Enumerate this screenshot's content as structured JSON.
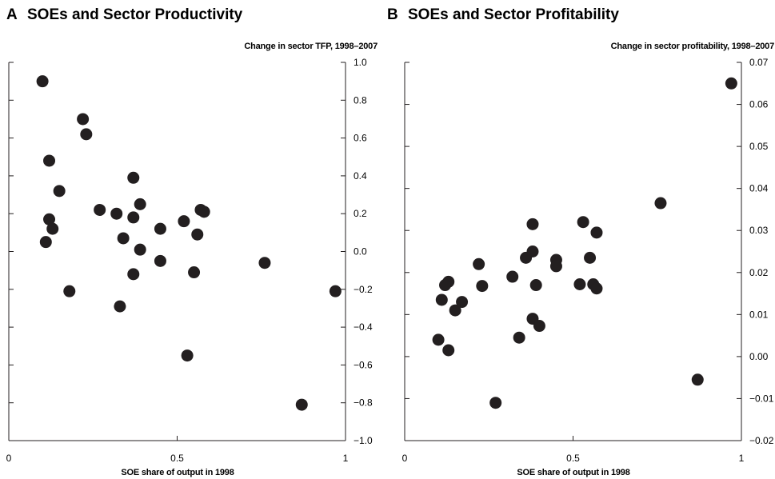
{
  "panels": [
    {
      "letter": "A",
      "title": "SOEs and Sector Productivity",
      "ylabel": "Change in sector TFP, 1998–2007",
      "xlabel": "SOE share of output in 1998"
    },
    {
      "letter": "B",
      "title": "SOEs and Sector Profitability",
      "ylabel": "Change in sector profitability, 1998–2007",
      "xlabel": "SOE share of output in 1998"
    }
  ],
  "chart_data": [
    {
      "type": "scatter",
      "title": "SOEs and Sector Productivity",
      "xlabel": "SOE share of output in 1998",
      "ylabel": "Change in sector TFP, 1998–2007",
      "xlim": [
        0,
        1
      ],
      "ylim": [
        -1.0,
        1.0
      ],
      "xticks": [
        0,
        0.5,
        1
      ],
      "xticklabels": [
        "0",
        "0.5",
        "1"
      ],
      "yticks": [
        1.0,
        0.8,
        0.6,
        0.4,
        0.2,
        0.0,
        -0.2,
        -0.4,
        -0.6,
        -0.8,
        -1.0
      ],
      "yticklabels": [
        "1.0",
        "0.8",
        "0.6",
        "0.4",
        "0.2",
        "0.0",
        "−0.2",
        "−0.4",
        "−0.6",
        "−0.8",
        "−1.0"
      ],
      "grid": false,
      "points": [
        {
          "x": 0.1,
          "y": 0.9
        },
        {
          "x": 0.22,
          "y": 0.7
        },
        {
          "x": 0.23,
          "y": 0.62
        },
        {
          "x": 0.12,
          "y": 0.48
        },
        {
          "x": 0.15,
          "y": 0.32
        },
        {
          "x": 0.37,
          "y": 0.39
        },
        {
          "x": 0.39,
          "y": 0.25
        },
        {
          "x": 0.27,
          "y": 0.22
        },
        {
          "x": 0.32,
          "y": 0.2
        },
        {
          "x": 0.37,
          "y": 0.18
        },
        {
          "x": 0.12,
          "y": 0.17
        },
        {
          "x": 0.13,
          "y": 0.12
        },
        {
          "x": 0.52,
          "y": 0.16
        },
        {
          "x": 0.57,
          "y": 0.22
        },
        {
          "x": 0.58,
          "y": 0.21
        },
        {
          "x": 0.45,
          "y": 0.12
        },
        {
          "x": 0.56,
          "y": 0.09
        },
        {
          "x": 0.34,
          "y": 0.07
        },
        {
          "x": 0.11,
          "y": 0.05
        },
        {
          "x": 0.39,
          "y": 0.01
        },
        {
          "x": 0.45,
          "y": -0.05
        },
        {
          "x": 0.76,
          "y": -0.06
        },
        {
          "x": 0.37,
          "y": -0.12
        },
        {
          "x": 0.55,
          "y": -0.11
        },
        {
          "x": 0.18,
          "y": -0.21
        },
        {
          "x": 0.97,
          "y": -0.21
        },
        {
          "x": 0.33,
          "y": -0.29
        },
        {
          "x": 0.53,
          "y": -0.55
        },
        {
          "x": 0.87,
          "y": -0.81
        }
      ]
    },
    {
      "type": "scatter",
      "title": "SOEs and Sector Profitability",
      "xlabel": "SOE share of output in 1998",
      "ylabel": "Change in sector profitability, 1998–2007",
      "xlim": [
        0,
        1
      ],
      "ylim": [
        -0.02,
        0.07
      ],
      "xticks": [
        0,
        0.5,
        1
      ],
      "xticklabels": [
        "0",
        "0.5",
        "1"
      ],
      "yticks": [
        0.07,
        0.06,
        0.05,
        0.04,
        0.03,
        0.02,
        0.01,
        0.0,
        -0.01,
        -0.02
      ],
      "yticklabels": [
        "0.07",
        "0.06",
        "0.05",
        "0.04",
        "0.03",
        "0.02",
        "0.01",
        "0.00",
        "−0.01",
        "−0.02"
      ],
      "grid": false,
      "points": [
        {
          "x": 0.97,
          "y": 0.065
        },
        {
          "x": 0.76,
          "y": 0.0365
        },
        {
          "x": 0.38,
          "y": 0.0315
        },
        {
          "x": 0.53,
          "y": 0.032
        },
        {
          "x": 0.57,
          "y": 0.0295
        },
        {
          "x": 0.38,
          "y": 0.025
        },
        {
          "x": 0.36,
          "y": 0.0235
        },
        {
          "x": 0.45,
          "y": 0.023
        },
        {
          "x": 0.55,
          "y": 0.0235
        },
        {
          "x": 0.22,
          "y": 0.022
        },
        {
          "x": 0.45,
          "y": 0.0215
        },
        {
          "x": 0.32,
          "y": 0.019
        },
        {
          "x": 0.13,
          "y": 0.0178
        },
        {
          "x": 0.12,
          "y": 0.017
        },
        {
          "x": 0.23,
          "y": 0.0168
        },
        {
          "x": 0.39,
          "y": 0.017
        },
        {
          "x": 0.52,
          "y": 0.0172
        },
        {
          "x": 0.56,
          "y": 0.0172
        },
        {
          "x": 0.57,
          "y": 0.0162
        },
        {
          "x": 0.11,
          "y": 0.0135
        },
        {
          "x": 0.17,
          "y": 0.013
        },
        {
          "x": 0.15,
          "y": 0.011
        },
        {
          "x": 0.38,
          "y": 0.009
        },
        {
          "x": 0.4,
          "y": 0.0073
        },
        {
          "x": 0.1,
          "y": 0.004
        },
        {
          "x": 0.13,
          "y": 0.0015
        },
        {
          "x": 0.34,
          "y": 0.0045
        },
        {
          "x": 0.27,
          "y": -0.011
        },
        {
          "x": 0.87,
          "y": -0.0055
        }
      ]
    }
  ]
}
